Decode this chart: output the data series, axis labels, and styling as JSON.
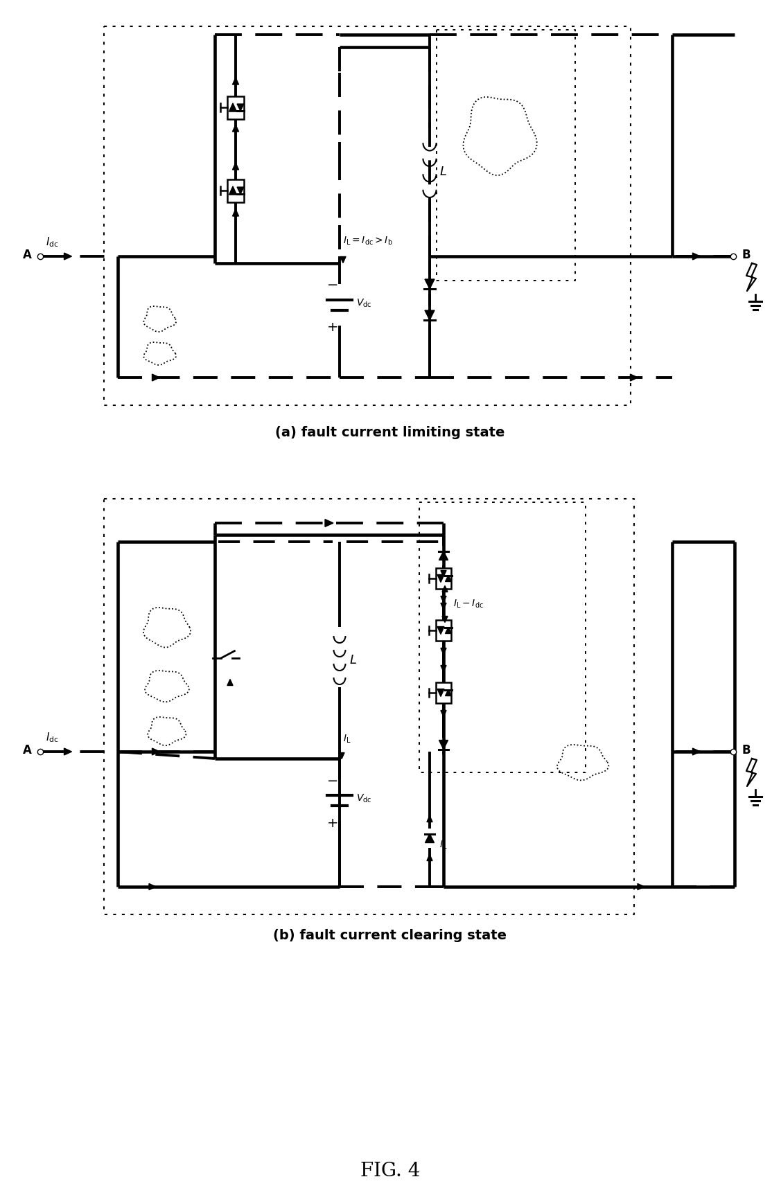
{
  "title": "FIG. 4",
  "subtitle_a": "(a) fault current limiting state",
  "subtitle_b": "(b) fault current clearing state",
  "bg_color": "#ffffff",
  "figsize": [
    11.27,
    17.38
  ],
  "dpi": 100
}
